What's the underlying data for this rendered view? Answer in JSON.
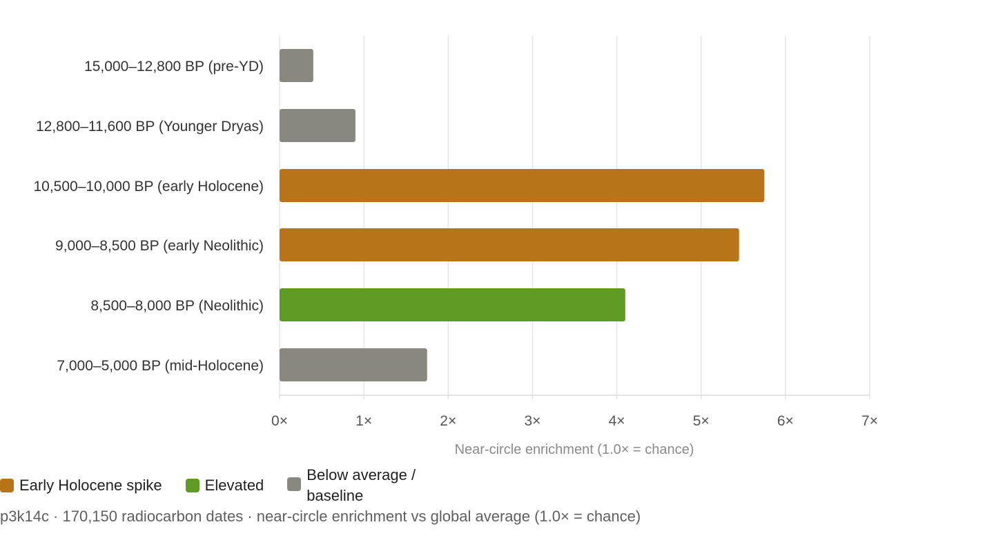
{
  "chart_data": {
    "type": "bar",
    "orientation": "horizontal",
    "categories": [
      "15,000–12,800 BP (pre-YD)",
      "12,800–11,600 BP (Younger Dryas)",
      "10,500–10,000 BP (early Holocene)",
      "9,000–8,500 BP (early Neolithic)",
      "8,500–8,000 BP (Neolithic)",
      "7,000–5,000 BP (mid-Holocene)"
    ],
    "values": [
      0.4,
      0.9,
      5.75,
      5.45,
      4.1,
      1.75
    ],
    "bar_groups": [
      "baseline",
      "baseline",
      "spike",
      "spike",
      "elevated",
      "baseline"
    ],
    "xlabel": "Near-circle enrichment (1.0× = chance)",
    "ylabel": "",
    "xlim": [
      0,
      7
    ],
    "xticks": [
      "0×",
      "1×",
      "2×",
      "3×",
      "4×",
      "5×",
      "6×",
      "7×"
    ],
    "grid": "vertical",
    "legend_position": "bottom-left"
  },
  "colors": {
    "spike": "#b87419",
    "elevated": "#5e9a24",
    "baseline": "#898880",
    "grid": "#e6e6e6",
    "tick_text": "#555555",
    "category_text": "#333333"
  },
  "legend": {
    "spike": "Early Holocene spike",
    "elevated": "Elevated",
    "baseline": "Below average / baseline"
  },
  "footnote": "p3k14c · 170,150 radiocarbon dates · near-circle enrichment vs global average (1.0× = chance)"
}
